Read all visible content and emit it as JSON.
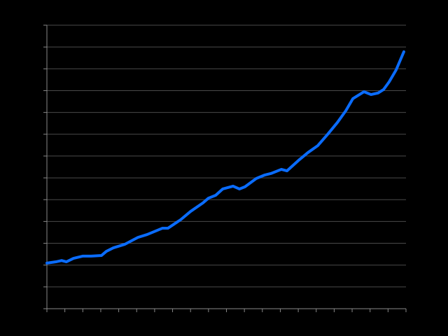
{
  "chart_data": {
    "type": "line",
    "x": [
      0,
      0.5,
      0.82,
      1.09,
      1.48,
      1.99,
      2.46,
      3.04,
      3.31,
      3.7,
      4.33,
      5.07,
      5.58,
      6.43,
      6.74,
      7.45,
      8.0,
      8.69,
      9.0,
      9.4,
      9.79,
      10.37,
      10.72,
      11.03,
      11.66,
      12.13,
      12.48,
      13.06,
      13.37,
      14.07,
      14.54,
      15.09,
      15.63,
      16.18,
      16.65,
      17.04,
      17.66,
      18.05,
      18.44,
      18.75,
      19.06,
      19.45,
      19.88
    ],
    "series": [
      {
        "color": "#0a6cff",
        "values": [
          2.09,
          2.15,
          2.21,
          2.15,
          2.31,
          2.41,
          2.41,
          2.44,
          2.63,
          2.79,
          2.95,
          3.27,
          3.4,
          3.69,
          3.69,
          4.08,
          4.46,
          4.85,
          5.07,
          5.2,
          5.49,
          5.62,
          5.49,
          5.59,
          5.97,
          6.13,
          6.2,
          6.39,
          6.32,
          6.84,
          7.16,
          7.48,
          7.99,
          8.54,
          9.08,
          9.63,
          9.95,
          9.82,
          9.89,
          10.05,
          10.4,
          10.95,
          11.78
        ]
      }
    ],
    "xlim": [
      0,
      20
    ],
    "xticks": [
      0,
      1,
      2,
      3,
      4,
      5,
      6,
      7,
      8,
      9,
      10,
      11,
      12,
      13,
      14,
      15,
      16,
      17,
      18,
      19,
      20
    ],
    "ylim": [
      0,
      13
    ],
    "yticks": [
      0,
      1,
      2,
      3,
      4,
      5,
      6,
      7,
      8,
      9,
      10,
      11,
      12,
      13
    ],
    "grid": true
  }
}
